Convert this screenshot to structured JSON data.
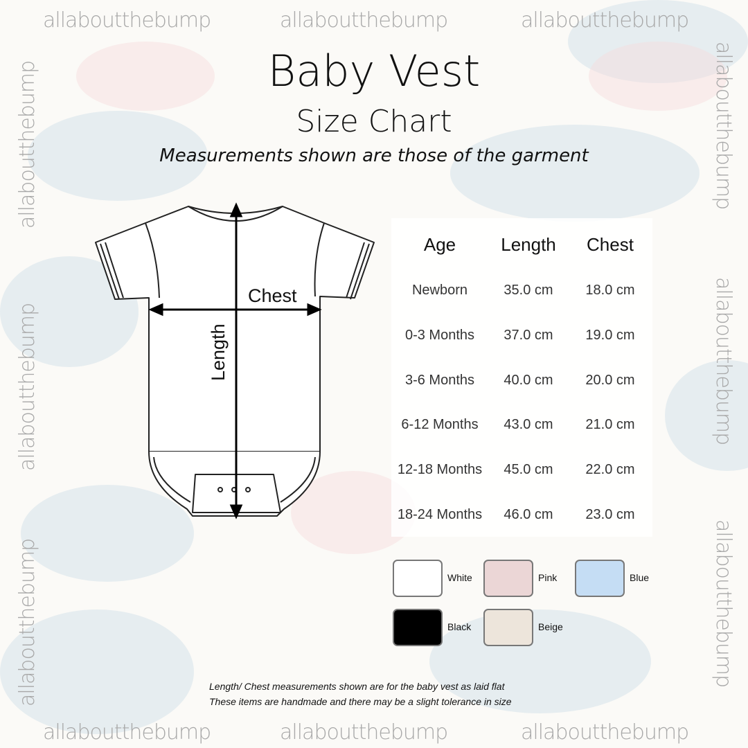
{
  "brand": "allaboutthebump",
  "title": "Baby Vest",
  "subtitle": "Size Chart",
  "tagline": "Measurements shown are those of the garment",
  "diagram": {
    "chest_label": "Chest",
    "length_label": "Length"
  },
  "table": {
    "headers": [
      "Age",
      "Length",
      "Chest"
    ],
    "rows": [
      [
        "Newborn",
        "35.0 cm",
        "18.0 cm"
      ],
      [
        "0-3 Months",
        "37.0 cm",
        "19.0 cm"
      ],
      [
        "3-6 Months",
        "40.0 cm",
        "20.0 cm"
      ],
      [
        "6-12 Months",
        "43.0 cm",
        "21.0 cm"
      ],
      [
        "12-18 Months",
        "45.0 cm",
        "22.0 cm"
      ],
      [
        "18-24 Months",
        "46.0 cm",
        "23.0 cm"
      ]
    ]
  },
  "colors": [
    {
      "name": "White",
      "hex": "#ffffff"
    },
    {
      "name": "Pink",
      "hex": "#ebd6d6"
    },
    {
      "name": "Blue",
      "hex": "#c5ddf4"
    },
    {
      "name": "Black",
      "hex": "#000000"
    },
    {
      "name": "Beige",
      "hex": "#ede5db"
    }
  ],
  "notes": [
    "Length/ Chest measurements shown are for the baby vest as laid flat",
    "These items are handmade and there may be a slight tolerance in size"
  ]
}
